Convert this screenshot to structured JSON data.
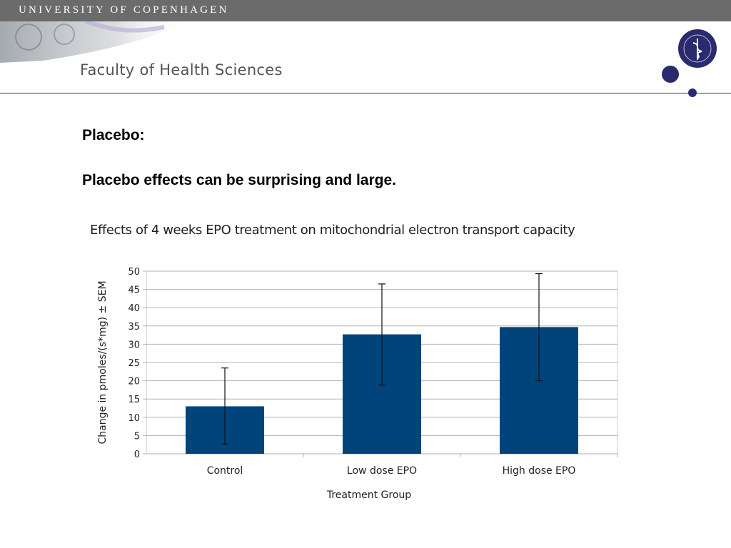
{
  "header": {
    "university": "UNIVERSITY OF COPENHAGEN",
    "faculty": "Faculty of Health Sciences",
    "accent_color": "#2a2a6e",
    "bar_color": "#6b6b6b"
  },
  "slide": {
    "heading": "Placebo:",
    "subheading": "Placebo effects can be surprising and large."
  },
  "chart_data": {
    "type": "bar",
    "title": "Effects of 4 weeks EPO treatment on mitochondrial electron transport capacity",
    "xlabel": "Treatment Group",
    "ylabel": "Change in pmoles/(s*mg) ± SEM",
    "categories": [
      "Control",
      "Low dose EPO",
      "High dose EPO"
    ],
    "values": [
      13,
      32.7,
      34.7
    ],
    "error_low": [
      2.7,
      18.8,
      20
    ],
    "error_high": [
      23.5,
      46.5,
      49.3
    ],
    "ylim": [
      0,
      50
    ],
    "yticks": [
      0,
      5,
      10,
      15,
      20,
      25,
      30,
      35,
      40,
      45,
      50
    ],
    "grid": true,
    "bar_color": "#00447c"
  }
}
